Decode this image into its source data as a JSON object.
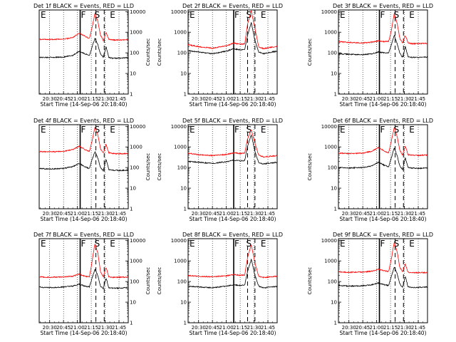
{
  "x_tick_labels": [
    "20:30",
    "20:45",
    "21:00",
    "21:15",
    "21:30",
    "21:45"
  ],
  "y_tick_labels": [
    "1",
    "10",
    "100",
    "1000",
    "10000"
  ],
  "ylabel": "Counts/sec",
  "xlabel": "Start Time (14-Sep-06 20:18:40)",
  "colors": {
    "events": "#000000",
    "lld": "#ff0000",
    "axis": "#000000"
  },
  "chart_data": [
    {
      "type": "line",
      "title": "Det 1f BLACK = Events, RED = LLD",
      "y_axis_side": "right",
      "markers": {
        "solid": "21:03",
        "dash1": "21:20",
        "dash2": "21:29"
      },
      "marker_labels": {
        "e_left": "E",
        "f": "F",
        "s": "S",
        "e_right": "E"
      },
      "xlim": [
        "20:18:40",
        "21:55"
      ],
      "ylim": [
        1,
        12000
      ],
      "yscale": "log",
      "series": [
        {
          "x": [
            "20:18",
            "20:30",
            "20:45",
            "20:55",
            "21:02",
            "21:08",
            "21:13",
            "21:16",
            "21:19",
            "21:22",
            "21:25",
            "21:28",
            "21:31",
            "21:34",
            "21:38",
            "21:45",
            "21:55"
          ],
          "values": [
            60,
            60,
            62,
            75,
            120,
            90,
            75,
            200,
            500,
            250,
            90,
            60,
            200,
            60,
            55,
            55,
            58
          ]
        },
        {
          "x": [
            "20:18",
            "20:30",
            "20:45",
            "20:55",
            "21:02",
            "21:08",
            "21:13",
            "21:16",
            "21:19",
            "21:22",
            "21:25",
            "21:28",
            "21:31",
            "21:34",
            "21:38",
            "21:45",
            "21:55"
          ],
          "values": [
            450,
            450,
            460,
            550,
            900,
            650,
            500,
            1800,
            8000,
            3500,
            700,
            400,
            1000,
            450,
            420,
            420,
            430
          ]
        }
      ]
    },
    {
      "type": "line",
      "title": "Det 2f BLACK = Events, RED = LLD",
      "y_axis_side": "left",
      "markers": {
        "solid": "21:08",
        "dash1": "21:23",
        "dash2": "21:31"
      },
      "marker_labels": {
        "e_left": "E",
        "f": "F",
        "s": "S",
        "e_right": "E"
      },
      "xlim": [
        "20:18:40",
        "21:55"
      ],
      "ylim": [
        1,
        12000
      ],
      "yscale": "log",
      "series": [
        {
          "x": [
            "20:18",
            "20:30",
            "20:45",
            "21:00",
            "21:08",
            "21:15",
            "21:20",
            "21:23",
            "21:27",
            "21:31",
            "21:35",
            "21:40",
            "21:50",
            "21:55"
          ],
          "values": [
            130,
            110,
            90,
            120,
            160,
            140,
            150,
            700,
            3000,
            400,
            110,
            90,
            110,
            120
          ]
        },
        {
          "x": [
            "20:18",
            "20:30",
            "20:45",
            "21:00",
            "21:08",
            "21:15",
            "21:20",
            "21:23",
            "21:27",
            "21:31",
            "21:35",
            "21:40",
            "21:50",
            "21:55"
          ],
          "values": [
            250,
            200,
            170,
            220,
            300,
            260,
            280,
            2500,
            11000,
            1500,
            200,
            160,
            190,
            210
          ]
        }
      ]
    },
    {
      "type": "line",
      "title": "Det 3f BLACK = Events, RED = LLD",
      "y_axis_side": "left",
      "markers": {
        "solid": "21:03",
        "dash1": "21:20",
        "dash2": "21:29"
      },
      "marker_labels": {
        "e_left": "E",
        "f": "F",
        "s": "S",
        "e_right": "E"
      },
      "xlim": [
        "20:18:40",
        "21:55"
      ],
      "ylim": [
        1,
        12000
      ],
      "yscale": "log",
      "series": [
        {
          "x": [
            "20:18",
            "20:30",
            "20:45",
            "20:55",
            "21:02",
            "21:08",
            "21:13",
            "21:16",
            "21:19",
            "21:22",
            "21:25",
            "21:28",
            "21:31",
            "21:34",
            "21:38",
            "21:45",
            "21:55"
          ],
          "values": [
            90,
            85,
            80,
            90,
            110,
            100,
            100,
            250,
            700,
            300,
            100,
            60,
            200,
            65,
            60,
            60,
            62
          ]
        },
        {
          "x": [
            "20:18",
            "20:30",
            "20:45",
            "20:55",
            "21:02",
            "21:08",
            "21:13",
            "21:16",
            "21:19",
            "21:22",
            "21:25",
            "21:28",
            "21:31",
            "21:34",
            "21:38",
            "21:45",
            "21:55"
          ],
          "values": [
            350,
            320,
            300,
            330,
            380,
            350,
            360,
            1200,
            8000,
            3000,
            500,
            300,
            700,
            300,
            280,
            280,
            290
          ]
        }
      ]
    },
    {
      "type": "line",
      "title": "Det 4f BLACK = Events, RED = LLD",
      "y_axis_side": "right",
      "markers": {
        "solid": "21:03",
        "dash1": "21:20",
        "dash2": "21:29"
      },
      "marker_labels": {
        "e_left": "E",
        "f": "F",
        "s": "S",
        "e_right": "E"
      },
      "xlim": [
        "20:18:40",
        "21:55"
      ],
      "ylim": [
        1,
        12000
      ],
      "yscale": "log",
      "series": [
        {
          "x": [
            "20:18",
            "20:30",
            "20:45",
            "20:55",
            "21:02",
            "21:08",
            "21:13",
            "21:16",
            "21:19",
            "21:22",
            "21:25",
            "21:28",
            "21:31",
            "21:34",
            "21:38",
            "21:45",
            "21:55"
          ],
          "values": [
            90,
            85,
            90,
            110,
            160,
            110,
            90,
            250,
            600,
            300,
            100,
            70,
            250,
            80,
            75,
            72,
            75
          ]
        },
        {
          "x": [
            "20:18",
            "20:30",
            "20:45",
            "20:55",
            "21:02",
            "21:08",
            "21:13",
            "21:16",
            "21:19",
            "21:22",
            "21:25",
            "21:28",
            "21:31",
            "21:34",
            "21:38",
            "21:45",
            "21:55"
          ],
          "values": [
            600,
            580,
            600,
            750,
            1100,
            750,
            600,
            2000,
            9000,
            4000,
            800,
            500,
            1300,
            520,
            480,
            470,
            480
          ]
        }
      ]
    },
    {
      "type": "line",
      "title": "Det 5f BLACK = Events, RED = LLD",
      "y_axis_side": "left",
      "markers": {
        "solid": "21:08",
        "dash1": "21:23",
        "dash2": "21:31"
      },
      "marker_labels": {
        "e_left": "E",
        "f": "F",
        "s": "S",
        "e_right": "E"
      },
      "xlim": [
        "20:18:40",
        "21:55"
      ],
      "ylim": [
        1,
        12000
      ],
      "yscale": "log",
      "series": [
        {
          "x": [
            "20:18",
            "20:30",
            "20:45",
            "21:00",
            "21:08",
            "21:15",
            "21:20",
            "21:23",
            "21:27",
            "21:31",
            "21:35",
            "21:40",
            "21:50",
            "21:55"
          ],
          "values": [
            200,
            180,
            160,
            190,
            230,
            210,
            220,
            1100,
            4000,
            600,
            170,
            150,
            170,
            180
          ]
        },
        {
          "x": [
            "20:18",
            "20:30",
            "20:45",
            "21:00",
            "21:08",
            "21:15",
            "21:20",
            "21:23",
            "21:27",
            "21:31",
            "21:35",
            "21:40",
            "21:50",
            "21:55"
          ],
          "values": [
            500,
            420,
            380,
            430,
            520,
            480,
            500,
            2500,
            7000,
            1500,
            400,
            330,
            360,
            380
          ]
        }
      ]
    },
    {
      "type": "line",
      "title": "Det 6f BLACK = Events, RED = LLD",
      "y_axis_side": "left",
      "markers": {
        "solid": "21:03",
        "dash1": "21:20",
        "dash2": "21:29"
      },
      "marker_labels": {
        "e_left": "E",
        "f": "F",
        "s": "S",
        "e_right": "E"
      },
      "xlim": [
        "20:18:40",
        "21:55"
      ],
      "ylim": [
        1,
        12000
      ],
      "yscale": "log",
      "series": [
        {
          "x": [
            "20:18",
            "20:30",
            "20:45",
            "20:55",
            "21:02",
            "21:08",
            "21:13",
            "21:16",
            "21:19",
            "21:22",
            "21:25",
            "21:28",
            "21:31",
            "21:34",
            "21:38",
            "21:45",
            "21:55"
          ],
          "values": [
            100,
            95,
            100,
            120,
            180,
            130,
            110,
            300,
            900,
            400,
            120,
            80,
            300,
            100,
            95,
            92,
            95
          ]
        },
        {
          "x": [
            "20:18",
            "20:30",
            "20:45",
            "20:55",
            "21:02",
            "21:08",
            "21:13",
            "21:16",
            "21:19",
            "21:22",
            "21:25",
            "21:28",
            "21:31",
            "21:34",
            "21:38",
            "21:45",
            "21:55"
          ],
          "values": [
            500,
            480,
            500,
            620,
            950,
            650,
            520,
            2000,
            9000,
            3500,
            700,
            400,
            1100,
            420,
            400,
            390,
            400
          ]
        }
      ]
    },
    {
      "type": "line",
      "title": "Det 7f BLACK = Events, RED = LLD",
      "y_axis_side": "right",
      "markers": {
        "solid": "21:03",
        "dash1": "21:20",
        "dash2": "21:29"
      },
      "marker_labels": {
        "e_left": "E",
        "f": "F",
        "s": "S",
        "e_right": "E"
      },
      "xlim": [
        "20:18:40",
        "21:55"
      ],
      "ylim": [
        1,
        12000
      ],
      "yscale": "log",
      "series": [
        {
          "x": [
            "20:18",
            "20:30",
            "20:45",
            "20:55",
            "21:02",
            "21:08",
            "21:13",
            "21:16",
            "21:19",
            "21:22",
            "21:25",
            "21:28",
            "21:31",
            "21:34",
            "21:38",
            "21:45",
            "21:55"
          ],
          "values": [
            55,
            50,
            55,
            60,
            75,
            60,
            55,
            150,
            400,
            200,
            60,
            45,
            150,
            50,
            48,
            48,
            50
          ]
        },
        {
          "x": [
            "20:18",
            "20:30",
            "20:45",
            "20:55",
            "21:02",
            "21:08",
            "21:13",
            "21:16",
            "21:19",
            "21:22",
            "21:25",
            "21:28",
            "21:31",
            "21:34",
            "21:38",
            "21:45",
            "21:55"
          ],
          "values": [
            170,
            160,
            170,
            180,
            230,
            180,
            170,
            1000,
            7000,
            2500,
            300,
            170,
            500,
            170,
            160,
            160,
            165
          ]
        }
      ]
    },
    {
      "type": "line",
      "title": "Det 8f BLACK = Events, RED = LLD",
      "y_axis_side": "left",
      "markers": {
        "solid": "21:08",
        "dash1": "21:23",
        "dash2": "21:31"
      },
      "marker_labels": {
        "e_left": "E",
        "f": "F",
        "s": "S",
        "e_right": "E"
      },
      "xlim": [
        "20:18:40",
        "21:55"
      ],
      "ylim": [
        1,
        12000
      ],
      "yscale": "log",
      "series": [
        {
          "x": [
            "20:18",
            "20:30",
            "20:45",
            "21:00",
            "21:08",
            "21:15",
            "21:20",
            "21:23",
            "21:27",
            "21:31",
            "21:35",
            "21:40",
            "21:50",
            "21:55"
          ],
          "values": [
            60,
            55,
            50,
            60,
            70,
            65,
            70,
            300,
            1200,
            200,
            60,
            50,
            55,
            58
          ]
        },
        {
          "x": [
            "20:18",
            "20:30",
            "20:45",
            "21:00",
            "21:08",
            "21:15",
            "21:20",
            "21:23",
            "21:27",
            "21:31",
            "21:35",
            "21:40",
            "21:50",
            "21:55"
          ],
          "values": [
            200,
            180,
            170,
            190,
            220,
            200,
            210,
            1500,
            6000,
            800,
            180,
            160,
            170,
            180
          ]
        }
      ]
    },
    {
      "type": "line",
      "title": "Det 9f BLACK = Events, RED = LLD",
      "y_axis_side": "left",
      "markers": {
        "solid": "21:03",
        "dash1": "21:20",
        "dash2": "21:29"
      },
      "marker_labels": {
        "e_left": "E",
        "f": "F",
        "s": "S",
        "e_right": "E"
      },
      "xlim": [
        "20:18:40",
        "21:55"
      ],
      "ylim": [
        1,
        12000
      ],
      "yscale": "log",
      "series": [
        {
          "x": [
            "20:18",
            "20:30",
            "20:45",
            "20:55",
            "21:02",
            "21:08",
            "21:13",
            "21:16",
            "21:19",
            "21:22",
            "21:25",
            "21:28",
            "21:31",
            "21:34",
            "21:38",
            "21:45",
            "21:55"
          ],
          "values": [
            65,
            60,
            62,
            70,
            85,
            70,
            65,
            180,
            500,
            250,
            80,
            50,
            180,
            55,
            52,
            52,
            55
          ]
        },
        {
          "x": [
            "20:18",
            "20:30",
            "20:45",
            "20:55",
            "21:02",
            "21:08",
            "21:13",
            "21:16",
            "21:19",
            "21:22",
            "21:25",
            "21:28",
            "21:31",
            "21:34",
            "21:38",
            "21:45",
            "21:55"
          ],
          "values": [
            300,
            280,
            290,
            320,
            400,
            330,
            310,
            1300,
            8000,
            3000,
            500,
            300,
            700,
            280,
            270,
            270,
            275
          ]
        }
      ]
    }
  ]
}
